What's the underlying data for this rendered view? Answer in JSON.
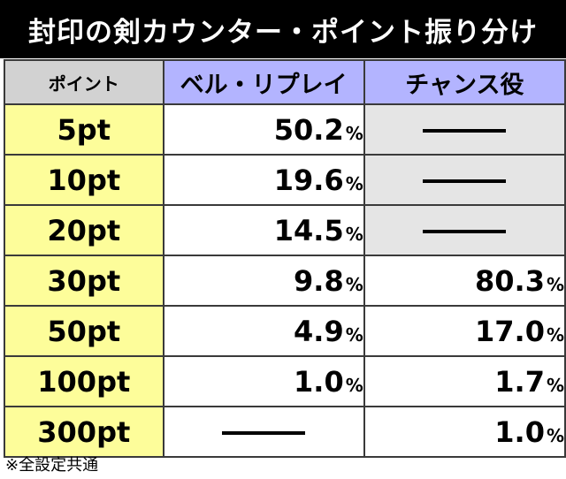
{
  "title": "封印の剣カウンター・ポイント振り分け",
  "headers": {
    "point": "ポイント",
    "bell": "ベル・リプレイ",
    "chance": "チャンス役"
  },
  "rows": [
    {
      "point": "5pt",
      "bell": "50.2",
      "chance": null
    },
    {
      "point": "10pt",
      "bell": "19.6",
      "chance": null
    },
    {
      "point": "20pt",
      "bell": "14.5",
      "chance": null
    },
    {
      "point": "30pt",
      "bell": "9.8",
      "chance": "80.3"
    },
    {
      "point": "50pt",
      "bell": "4.9",
      "chance": "17.0"
    },
    {
      "point": "100pt",
      "bell": "1.0",
      "chance": "1.7"
    },
    {
      "point": "300pt",
      "bell": null,
      "chance": "1.0"
    }
  ],
  "percent_sign": "%",
  "footnote": "※全設定共通",
  "colors": {
    "title_bg": "#000000",
    "point_col": "#fdfd9a",
    "header_blue": "#b3b4ff",
    "header_gray": "#d2d2d2",
    "empty_gray": "#e5e5e5"
  }
}
